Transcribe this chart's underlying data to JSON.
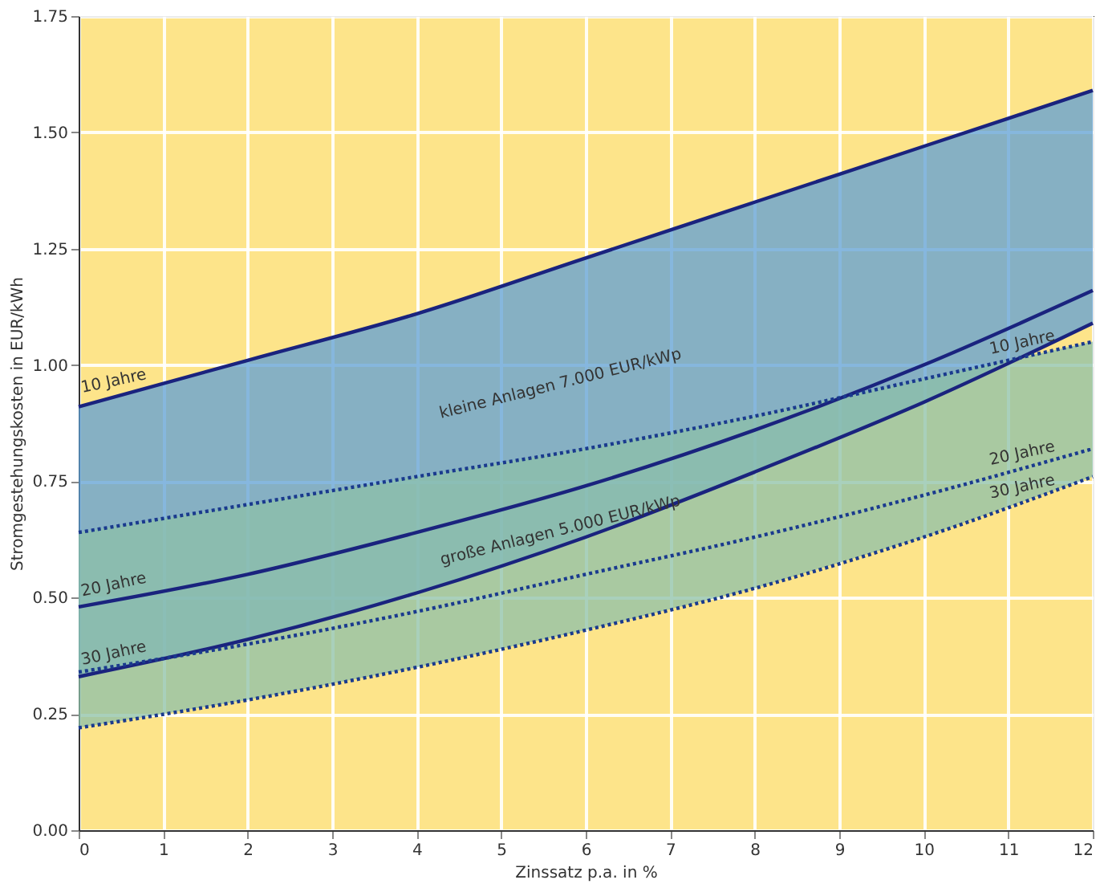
{
  "chart_data": {
    "type": "line",
    "xlabel": "Zinssatz p.a. in %",
    "ylabel": "Stromgestehungskosten in EUR/kWh",
    "x": [
      0,
      2,
      4,
      6,
      8,
      10,
      12
    ],
    "series": [
      {
        "name": "10 Jahre",
        "color": "#1a237e",
        "line_style": "solid",
        "values": [
          0.91,
          1.01,
          1.11,
          1.23,
          1.35,
          1.47,
          1.59
        ]
      },
      {
        "name": "20 Jahre",
        "color": "#1a237e",
        "line_style": "solid",
        "values": [
          0.48,
          0.55,
          0.64,
          0.74,
          0.86,
          1.0,
          1.16
        ],
        "lower": [
          0.33,
          0.41,
          0.51,
          0.63,
          0.77,
          0.92,
          1.09
        ],
        "upper": [
          0.91,
          1.01,
          1.11,
          1.23,
          1.35,
          1.47,
          1.59
        ]
      },
      {
        "name": "30 Jahre",
        "color": "#1a237e",
        "line_style": "solid",
        "values": [
          0.33,
          0.41,
          0.51,
          0.63,
          0.77,
          0.92,
          1.09
        ]
      },
      {
        "name": "10 Jahre",
        "color": "#1a3a8e",
        "line_style": "dotted",
        "values": [
          0.64,
          0.7,
          0.76,
          0.82,
          0.89,
          0.97,
          1.05
        ]
      },
      {
        "name": "20 Jahre",
        "color": "#1a3a8e",
        "line_style": "dotted",
        "values": [
          0.34,
          0.4,
          0.47,
          0.55,
          0.63,
          0.72,
          0.82
        ],
        "lower": [
          0.22,
          0.28,
          0.35,
          0.43,
          0.52,
          0.63,
          0.76
        ],
        "upper": [
          0.64,
          0.7,
          0.76,
          0.82,
          0.89,
          0.97,
          1.05
        ]
      },
      {
        "name": "30 Jahre",
        "color": "#1a3a8e",
        "line_style": "dotted",
        "values": [
          0.22,
          0.28,
          0.35,
          0.43,
          0.52,
          0.63,
          0.76
        ]
      }
    ],
    "xlim": [
      0,
      12
    ],
    "xticks": [
      0,
      1,
      2,
      3,
      4,
      5,
      6,
      7,
      8,
      9,
      10,
      11,
      12
    ],
    "ylim": [
      0,
      1.75
    ],
    "yticks": [
      {
        "value": 0,
        "label": "0.00"
      },
      {
        "value": 0.25,
        "label": "0.25"
      },
      {
        "value": 0.5,
        "label": "0.50"
      },
      {
        "value": 0.75,
        "label": "0.75"
      },
      {
        "value": 1,
        "label": "1.00"
      },
      {
        "value": 1.25,
        "label": "1.25"
      },
      {
        "value": 1.5,
        "label": "1.50"
      },
      {
        "value": 1.75,
        "label": "1.75"
      }
    ],
    "grid": true,
    "legend": false,
    "marker": "none",
    "annotations": [
      "kleine Anlagen 7.000 EUR/kWp",
      "große Anlagen 5.000 EUR/kWp"
    ]
  }
}
